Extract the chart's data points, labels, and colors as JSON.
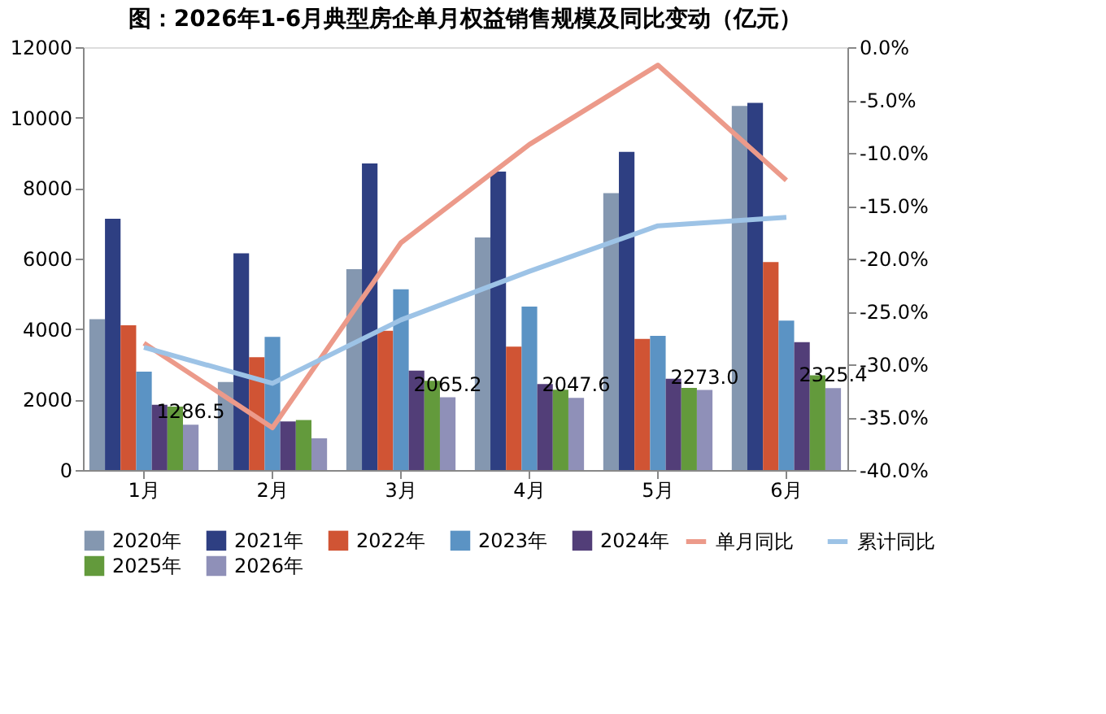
{
  "chart_data": {
    "type": "bar",
    "title": "图：2026年1-6月典型房企单月权益销售规模及同比变动（亿元）",
    "categories": [
      "1月",
      "2月",
      "3月",
      "4月",
      "5月",
      "6月"
    ],
    "series": [
      {
        "name": "2020年",
        "color": "#8497b0",
        "values": [
          4280,
          2500,
          5700,
          6600,
          7860,
          10330
        ]
      },
      {
        "name": "2021年",
        "color": "#2e3f82",
        "values": [
          7130,
          6150,
          8700,
          8470,
          9030,
          10420
        ]
      },
      {
        "name": "2022年",
        "color": "#d05434",
        "values": [
          4110,
          3200,
          3950,
          3500,
          3720,
          5900
        ]
      },
      {
        "name": "2023年",
        "color": "#5b93c4",
        "values": [
          2790,
          3780,
          5130,
          4640,
          3810,
          4240
        ]
      },
      {
        "name": "2024年",
        "color": "#523e78",
        "values": [
          1850,
          1380,
          2820,
          2440,
          2590,
          3630
        ]
      },
      {
        "name": "2025年",
        "color": "#639a3c",
        "values": [
          1800,
          1420,
          2530,
          2280,
          2330,
          2690
        ]
      },
      {
        "name": "2026年",
        "color": "#8f90b8",
        "values": [
          1286.5,
          900,
          2065.2,
          2047.6,
          2273.0,
          2325.4
        ],
        "value_labels": [
          "1286.5",
          null,
          "2065.2",
          "2047.6",
          "2273.0",
          "2325.4"
        ]
      },
      {
        "name": "单月同比",
        "type": "line",
        "axis": "y2",
        "color": "#ec9a8a",
        "values": [
          -28.0,
          -36.0,
          -18.5,
          -9.2,
          -1.7,
          -12.6
        ]
      },
      {
        "name": "累计同比",
        "type": "line",
        "axis": "y2",
        "color": "#9dc3e6",
        "values": [
          -28.4,
          -31.8,
          -25.8,
          -21.2,
          -16.9,
          -16.1
        ]
      }
    ],
    "ylim": [
      0,
      12000
    ],
    "yticks": [
      0,
      2000,
      4000,
      6000,
      8000,
      10000,
      12000
    ],
    "y2lim": [
      -40,
      0
    ],
    "y2ticks": [
      {
        "value": 0,
        "label": "0.0%"
      },
      {
        "value": -5,
        "label": "-5.0%"
      },
      {
        "value": -10,
        "label": "-10.0%"
      },
      {
        "value": -15,
        "label": "-15.0%"
      },
      {
        "value": -20,
        "label": "-20.0%"
      },
      {
        "value": -25,
        "label": "-25.0%"
      },
      {
        "value": -30,
        "label": "-30.0%"
      },
      {
        "value": -35,
        "label": "-35.0%"
      },
      {
        "value": -40,
        "label": "-40.0%"
      }
    ],
    "legend": "bottom",
    "grid": false,
    "line_style": "solid"
  }
}
